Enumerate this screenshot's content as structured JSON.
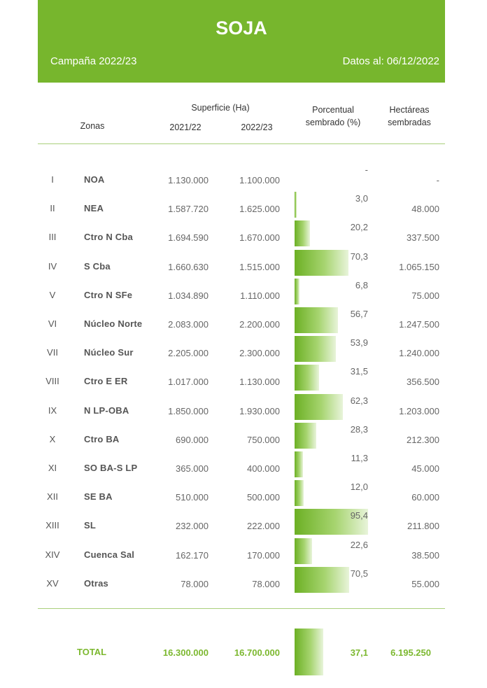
{
  "header": {
    "title": "SOJA",
    "campaign": "Campaña 2022/23",
    "date": "Datos al: 06/12/2022"
  },
  "columns": {
    "zonas": "Zonas",
    "superficie": "Superficie (Ha)",
    "y2021": "2021/22",
    "y2022": "2022/23",
    "porcentual_1": "Porcentual",
    "porcentual_2": "sembrado (%)",
    "hectareas_1": "Hectáreas",
    "hectareas_2": "sembradas"
  },
  "rows": [
    {
      "roman": "I",
      "zone": "NOA",
      "s2021": "1.130.000",
      "s2022": "1.100.000",
      "pct": "-",
      "pct_value": 0,
      "ha": "-"
    },
    {
      "roman": "II",
      "zone": "NEA",
      "s2021": "1.587.720",
      "s2022": "1.625.000",
      "pct": "3,0",
      "pct_value": 3.0,
      "ha": "48.000"
    },
    {
      "roman": "III",
      "zone": "Ctro N Cba",
      "s2021": "1.694.590",
      "s2022": "1.670.000",
      "pct": "20,2",
      "pct_value": 20.2,
      "ha": "337.500"
    },
    {
      "roman": "IV",
      "zone": "S Cba",
      "s2021": "1.660.630",
      "s2022": "1.515.000",
      "pct": "70,3",
      "pct_value": 70.3,
      "ha": "1.065.150"
    },
    {
      "roman": "V",
      "zone": "Ctro N SFe",
      "s2021": "1.034.890",
      "s2022": "1.110.000",
      "pct": "6,8",
      "pct_value": 6.8,
      "ha": "75.000"
    },
    {
      "roman": "VI",
      "zone": "Núcleo Norte",
      "s2021": "2.083.000",
      "s2022": "2.200.000",
      "pct": "56,7",
      "pct_value": 56.7,
      "ha": "1.247.500"
    },
    {
      "roman": "VII",
      "zone": "Núcleo Sur",
      "s2021": "2.205.000",
      "s2022": "2.300.000",
      "pct": "53,9",
      "pct_value": 53.9,
      "ha": "1.240.000"
    },
    {
      "roman": "VIII",
      "zone": "Ctro E ER",
      "s2021": "1.017.000",
      "s2022": "1.130.000",
      "pct": "31,5",
      "pct_value": 31.5,
      "ha": "356.500"
    },
    {
      "roman": "IX",
      "zone": "N LP-OBA",
      "s2021": "1.850.000",
      "s2022": "1.930.000",
      "pct": "62,3",
      "pct_value": 62.3,
      "ha": "1.203.000"
    },
    {
      "roman": "X",
      "zone": "Ctro BA",
      "s2021": "690.000",
      "s2022": "750.000",
      "pct": "28,3",
      "pct_value": 28.3,
      "ha": "212.300"
    },
    {
      "roman": "XI",
      "zone": "SO BA-S LP",
      "s2021": "365.000",
      "s2022": "400.000",
      "pct": "11,3",
      "pct_value": 11.3,
      "ha": "45.000"
    },
    {
      "roman": "XII",
      "zone": "SE BA",
      "s2021": "510.000",
      "s2022": "500.000",
      "pct": "12,0",
      "pct_value": 12.0,
      "ha": "60.000"
    },
    {
      "roman": "XIII",
      "zone": "SL",
      "s2021": "232.000",
      "s2022": "222.000",
      "pct": "95,4",
      "pct_value": 95.4,
      "ha": "211.800"
    },
    {
      "roman": "XIV",
      "zone": "Cuenca Sal",
      "s2021": "162.170",
      "s2022": "170.000",
      "pct": "22,6",
      "pct_value": 22.6,
      "ha": "38.500"
    },
    {
      "roman": "XV",
      "zone": "Otras",
      "s2021": "78.000",
      "s2022": "78.000",
      "pct": "70,5",
      "pct_value": 70.5,
      "ha": "55.000"
    }
  ],
  "total": {
    "label": "TOTAL",
    "s2021": "16.300.000",
    "s2022": "16.700.000",
    "pct": "37,1",
    "pct_value": 37.1,
    "ha": "6.195.250"
  },
  "colors": {
    "brand_green": "#77b62d",
    "bar_green": "#6cb024",
    "total_text": "#7cb82f"
  }
}
